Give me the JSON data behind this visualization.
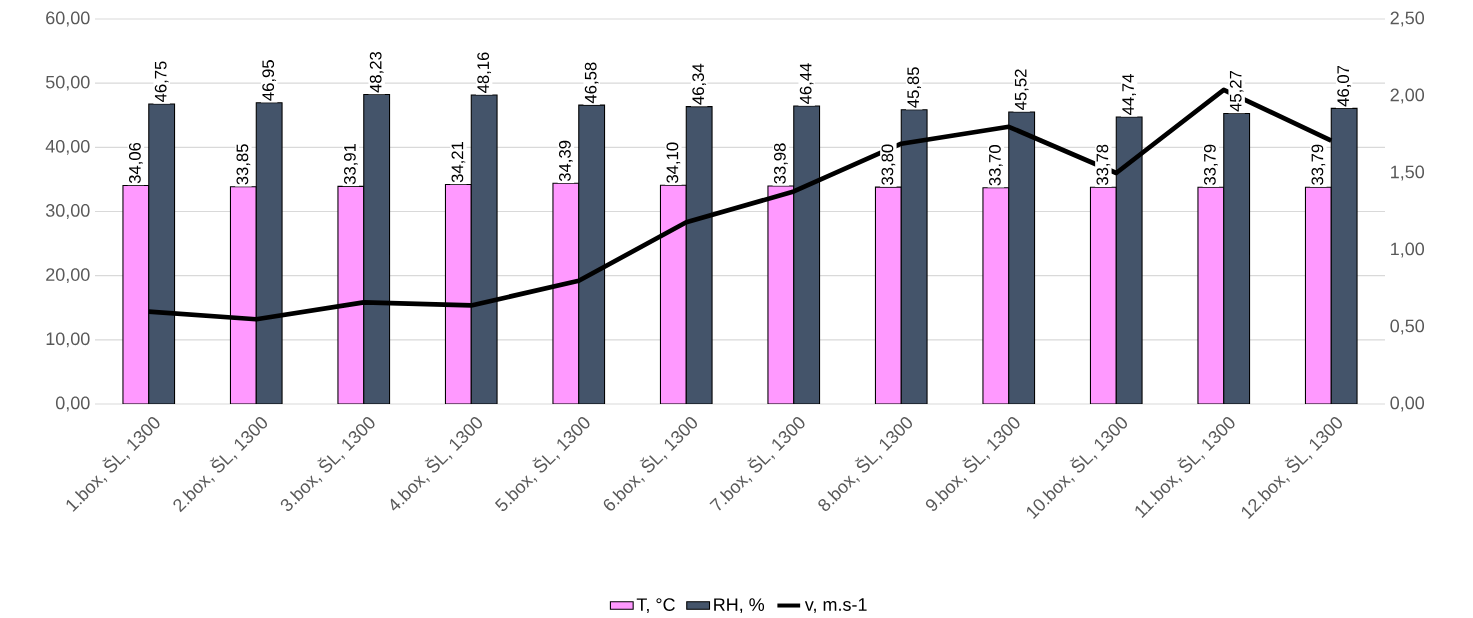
{
  "chart_data": {
    "type": "bar",
    "categories": [
      "1.box, ŠL, 1300",
      "2.box, ŠL, 1300",
      "3.box, ŠL, 1300",
      "4.box, ŠL, 1300",
      "5.box, ŠL, 1300",
      "6.box, ŠL, 1300",
      "7.box, ŠL, 1300",
      "8.box, ŠL, 1300",
      "9.box, ŠL, 1300",
      "10.box, ŠL, 1300",
      "11.box, ŠL, 1300",
      "12.box, ŠL, 1300"
    ],
    "series": [
      {
        "name": "T, °C",
        "color": "#ff99ff",
        "values": [
          34.06,
          33.85,
          33.91,
          34.21,
          34.39,
          34.1,
          33.98,
          33.8,
          33.7,
          33.78,
          33.79,
          33.79
        ],
        "value_labels": [
          "34,06",
          "33,85",
          "33,91",
          "34,21",
          "34,39",
          "34,10",
          "33,98",
          "33,80",
          "33,70",
          "33,78",
          "33,79",
          "33,79"
        ]
      },
      {
        "name": "RH, %",
        "color": "#44546a",
        "values": [
          46.75,
          46.95,
          48.23,
          48.16,
          46.58,
          46.34,
          46.44,
          45.85,
          45.52,
          44.74,
          45.27,
          46.07
        ],
        "value_labels": [
          "46,75",
          "46,95",
          "48,23",
          "48,16",
          "46,58",
          "46,34",
          "46,44",
          "45,85",
          "45,52",
          "44,74",
          "45,27",
          "46,07"
        ]
      },
      {
        "name": "v, m.s-1",
        "type": "line",
        "axis": "y2",
        "color": "#000000",
        "values": [
          0.6,
          0.55,
          0.66,
          0.64,
          0.8,
          1.18,
          1.38,
          1.69,
          1.8,
          1.5,
          2.04,
          1.71
        ]
      }
    ],
    "ylim": [
      0,
      60
    ],
    "yticks": [
      {
        "value": 0,
        "label": "0,00"
      },
      {
        "value": 10,
        "label": "10,00"
      },
      {
        "value": 20,
        "label": "20,00"
      },
      {
        "value": 30,
        "label": "30,00"
      },
      {
        "value": 40,
        "label": "40,00"
      },
      {
        "value": 50,
        "label": "50,00"
      },
      {
        "value": 60,
        "label": "60,00"
      }
    ],
    "y2lim": [
      0,
      2.5
    ],
    "y2ticks": [
      {
        "value": 0,
        "label": "0,00"
      },
      {
        "value": 0.5,
        "label": "0,50"
      },
      {
        "value": 1,
        "label": "1,00"
      },
      {
        "value": 1.5,
        "label": "1,50"
      },
      {
        "value": 2,
        "label": "2,00"
      },
      {
        "value": 2.5,
        "label": "2,50"
      }
    ],
    "grid": "y",
    "legend": "bottom"
  }
}
